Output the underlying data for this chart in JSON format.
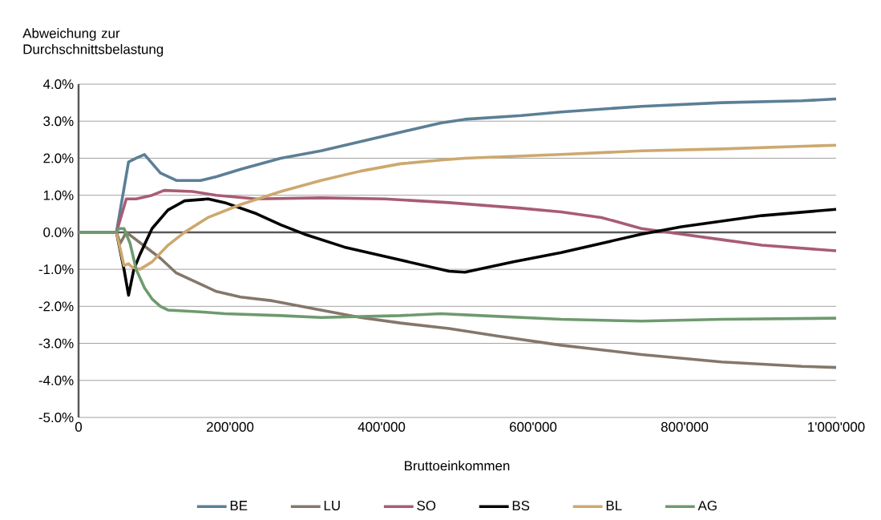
{
  "chart_data": {
    "type": "line",
    "ylabel": "Abweichung zur Durchschnittsbelastung",
    "xlabel": "Bruttoeinkommen",
    "xlim": [
      0,
      1000000
    ],
    "ylim": [
      -5,
      4
    ],
    "xticks": [
      0,
      {
        "value": 200000,
        "label": "200'000"
      },
      {
        "value": 400000,
        "label": "400'000"
      },
      {
        "value": 600000,
        "label": "600'000"
      },
      {
        "value": 800000,
        "label": "800'000"
      },
      {
        "value": 1000000,
        "label": "1'000'000"
      }
    ],
    "yticks": [
      {
        "value": -5,
        "label": "-5.0%"
      },
      {
        "value": -4,
        "label": "-4.0%"
      },
      {
        "value": -3,
        "label": "-3.0%"
      },
      {
        "value": -2,
        "label": "-2.0%"
      },
      {
        "value": -1,
        "label": "-1.0%"
      },
      {
        "value": 0,
        "label": "0.0%"
      },
      {
        "value": 1,
        "label": "1.0%"
      },
      {
        "value": 2,
        "label": "2.0%"
      },
      {
        "value": 3,
        "label": "3.0%"
      },
      {
        "value": 4,
        "label": "4.0%"
      }
    ],
    "grid": "y",
    "legend": "bottom",
    "marker": "none",
    "line_style": "solid",
    "series": [
      {
        "name": "BE",
        "color": "#5b7f95",
        "x": [
          0,
          50000,
          66000,
          76000,
          87000,
          108000,
          129000,
          161000,
          182000,
          214000,
          267000,
          320000,
          372000,
          425000,
          478000,
          510000,
          584000,
          637000,
          743000,
          849000,
          955000,
          1000000
        ],
        "values": [
          0,
          0,
          1.9,
          2.0,
          2.1,
          1.6,
          1.4,
          1.4,
          1.5,
          1.7,
          2.0,
          2.2,
          2.45,
          2.7,
          2.95,
          3.05,
          3.15,
          3.25,
          3.4,
          3.5,
          3.55,
          3.6
        ]
      },
      {
        "name": "LU",
        "color": "#84776a",
        "x": [
          0,
          50000,
          55000,
          63000,
          108000,
          129000,
          161000,
          182000,
          214000,
          256000,
          320000,
          372000,
          425000,
          489000,
          552000,
          637000,
          743000,
          849000,
          955000,
          1000000
        ],
        "values": [
          0,
          0,
          -0.3,
          0,
          -0.7,
          -1.1,
          -1.4,
          -1.6,
          -1.75,
          -1.85,
          -2.1,
          -2.3,
          -2.45,
          -2.6,
          -2.8,
          -3.05,
          -3.3,
          -3.5,
          -3.62,
          -3.65
        ]
      },
      {
        "name": "SO",
        "color": "#a85c73",
        "x": [
          0,
          50000,
          63000,
          76000,
          97000,
          113000,
          150000,
          182000,
          235000,
          320000,
          404000,
          489000,
          584000,
          637000,
          690000,
          743000,
          796000,
          849000,
          902000,
          1000000
        ],
        "values": [
          0,
          0,
          0.9,
          0.9,
          1.0,
          1.13,
          1.1,
          1.0,
          0.9,
          0.93,
          0.9,
          0.8,
          0.65,
          0.55,
          0.4,
          0.1,
          -0.05,
          -0.2,
          -0.35,
          -0.5
        ]
      },
      {
        "name": "BS",
        "color": "#000000",
        "x": [
          0,
          50000,
          60000,
          66000,
          73000,
          81000,
          97000,
          118000,
          140000,
          171000,
          193000,
          235000,
          267000,
          298000,
          351000,
          425000,
          489000,
          510000,
          574000,
          637000,
          690000,
          743000,
          796000,
          902000,
          1000000
        ],
        "values": [
          0,
          0,
          -1.0,
          -1.7,
          -1.0,
          -0.6,
          0.1,
          0.6,
          0.85,
          0.9,
          0.8,
          0.5,
          0.2,
          -0.05,
          -0.4,
          -0.75,
          -1.05,
          -1.08,
          -0.8,
          -0.55,
          -0.3,
          -0.05,
          0.15,
          0.45,
          0.62
        ]
      },
      {
        "name": "BL",
        "color": "#cda86e",
        "x": [
          0,
          50000,
          60000,
          66000,
          71000,
          81000,
          97000,
          118000,
          140000,
          171000,
          214000,
          267000,
          320000,
          372000,
          425000,
          478000,
          510000,
          637000,
          743000,
          849000,
          1000000
        ],
        "values": [
          0,
          0,
          -0.9,
          -0.85,
          -0.95,
          -1.0,
          -0.8,
          -0.35,
          0.0,
          0.4,
          0.75,
          1.1,
          1.4,
          1.65,
          1.85,
          1.95,
          2.0,
          2.1,
          2.2,
          2.25,
          2.35
        ]
      },
      {
        "name": "AG",
        "color": "#6e9a6e",
        "x": [
          0,
          50000,
          53000,
          60000,
          68000,
          76000,
          87000,
          97000,
          108000,
          118000,
          161000,
          193000,
          267000,
          320000,
          425000,
          478000,
          531000,
          637000,
          743000,
          849000,
          1000000
        ],
        "values": [
          0,
          0,
          0.1,
          0.1,
          -0.3,
          -1.0,
          -1.5,
          -1.8,
          -2.0,
          -2.1,
          -2.15,
          -2.2,
          -2.25,
          -2.3,
          -2.25,
          -2.2,
          -2.25,
          -2.35,
          -2.4,
          -2.35,
          -2.32
        ]
      }
    ]
  }
}
